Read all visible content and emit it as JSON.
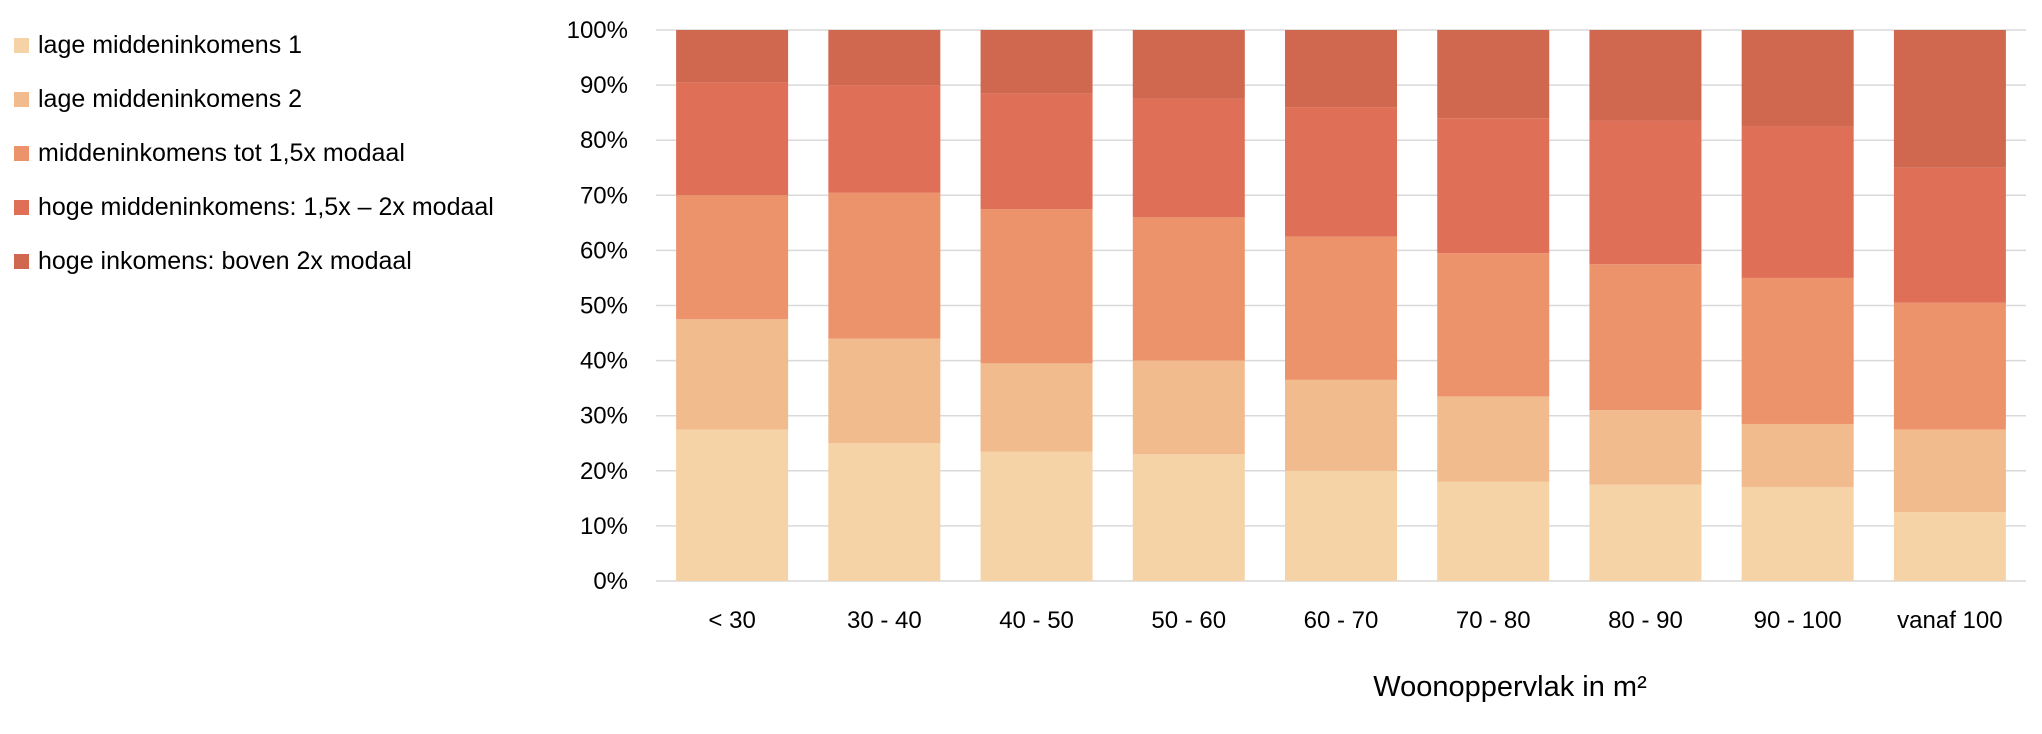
{
  "chart_data": {
    "type": "bar",
    "stacked": true,
    "normalized": true,
    "categories": [
      "< 30",
      "30 - 40",
      "40 - 50",
      "50 - 60",
      "60 - 70",
      "70 - 80",
      "80 - 90",
      "90 - 100",
      "vanaf 100"
    ],
    "series": [
      {
        "name": "lage middeninkomens 1",
        "color": "#f6d3a6",
        "values": [
          27.5,
          25,
          23.5,
          23,
          20,
          18,
          17.5,
          17,
          12.5
        ]
      },
      {
        "name": "lage middeninkomens 2",
        "color": "#f2bb8e",
        "values": [
          20,
          19,
          16,
          17,
          16.5,
          15.5,
          13.5,
          11.5,
          15
        ]
      },
      {
        "name": "middeninkomens tot 1,5x modaal",
        "color": "#ec936b",
        "values": [
          22.5,
          26.5,
          28,
          26,
          26,
          26,
          26.5,
          26.5,
          23
        ]
      },
      {
        "name": "hoge middeninkomens: 1,5x  – 2x modaal",
        "color": "#e06f57",
        "values": [
          20.5,
          19.5,
          21,
          21.5,
          23.5,
          24.5,
          26,
          27.5,
          24.5
        ]
      },
      {
        "name": "hoge inkomens: boven 2x modaal",
        "color": "#d0674f",
        "values": [
          9.5,
          10,
          11.5,
          12.5,
          14,
          16,
          16.5,
          17.5,
          25
        ]
      }
    ],
    "title": "",
    "xlabel": "Woonoppervlak in m²",
    "ylabel": "",
    "ylim": [
      0,
      100
    ],
    "yticks": [
      "0%",
      "10%",
      "20%",
      "30%",
      "40%",
      "50%",
      "60%",
      "70%",
      "80%",
      "90%",
      "100%"
    ],
    "grid": true,
    "legend_position": "left"
  }
}
